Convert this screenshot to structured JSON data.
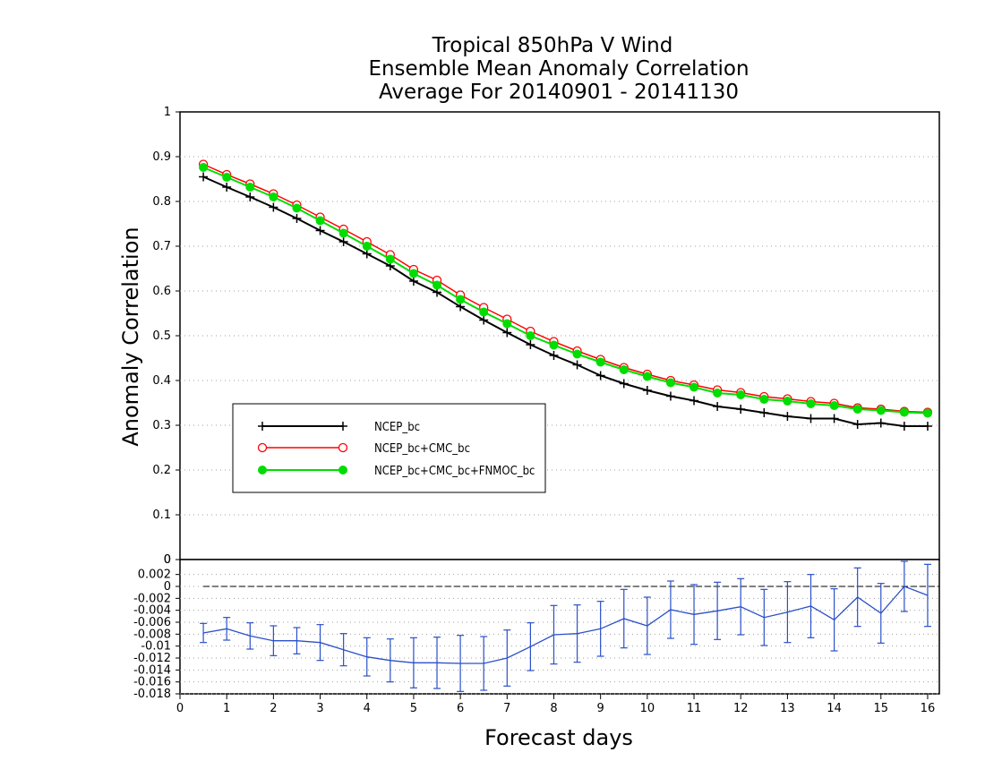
{
  "chart_data": [
    {
      "type": "line",
      "title": "Tropical 850hPa V Wind",
      "subtitle": "Ensemble Mean Anomaly Correlation",
      "subtitle2": "Average For 20140901 - 20141130",
      "xlabel": "Forecast days",
      "ylabel": "Anomaly Correlation",
      "xlim": [
        0,
        16.25
      ],
      "ylim": [
        0,
        1
      ],
      "yticks": [
        "0",
        "0.1",
        "0.2",
        "0.3",
        "0.4",
        "0.5",
        "0.6",
        "0.7",
        "0.8",
        "0.9",
        "1"
      ],
      "x": [
        0.5,
        1,
        1.5,
        2,
        2.5,
        3,
        3.5,
        4,
        4.5,
        5,
        5.5,
        6,
        6.5,
        7,
        7.5,
        8,
        8.5,
        9,
        9.5,
        10,
        10.5,
        11,
        11.5,
        12,
        12.5,
        13,
        13.5,
        14,
        14.5,
        15,
        15.5,
        16
      ],
      "series": [
        {
          "name": "NCEP_bc",
          "color": "#000000",
          "marker": "plus",
          "values": [
            0.855,
            0.832,
            0.81,
            0.787,
            0.762,
            0.735,
            0.71,
            0.683,
            0.656,
            0.622,
            0.597,
            0.565,
            0.535,
            0.507,
            0.48,
            0.456,
            0.435,
            0.411,
            0.393,
            0.378,
            0.365,
            0.355,
            0.342,
            0.336,
            0.328,
            0.32,
            0.315,
            0.315,
            0.302,
            0.305,
            0.298,
            0.298
          ]
        },
        {
          "name": "NCEP_bc+CMC_bc",
          "color": "#ff0000",
          "marker": "open-circle",
          "values": [
            0.883,
            0.86,
            0.839,
            0.817,
            0.792,
            0.765,
            0.738,
            0.71,
            0.681,
            0.648,
            0.624,
            0.591,
            0.563,
            0.537,
            0.51,
            0.487,
            0.466,
            0.447,
            0.429,
            0.414,
            0.4,
            0.39,
            0.379,
            0.373,
            0.364,
            0.359,
            0.353,
            0.349,
            0.339,
            0.336,
            0.331,
            0.329
          ]
        },
        {
          "name": "NCEP_bc+CMC_bc+FNMOC_bc",
          "color": "#00dd00",
          "marker": "filled-circle",
          "values": [
            0.876,
            0.854,
            0.832,
            0.81,
            0.785,
            0.757,
            0.729,
            0.7,
            0.671,
            0.639,
            0.613,
            0.581,
            0.553,
            0.527,
            0.5,
            0.479,
            0.459,
            0.441,
            0.424,
            0.409,
            0.395,
            0.385,
            0.372,
            0.368,
            0.358,
            0.354,
            0.348,
            0.344,
            0.336,
            0.333,
            0.329,
            0.327
          ]
        }
      ],
      "legend": "lower-left"
    },
    {
      "type": "line",
      "xlabel": "Forecast days",
      "xlim": [
        0,
        16.25
      ],
      "ylim": [
        -0.018,
        0.0045
      ],
      "xticks": [
        "0",
        "1",
        "2",
        "3",
        "4",
        "5",
        "6",
        "7",
        "8",
        "9",
        "10",
        "11",
        "12",
        "13",
        "14",
        "15",
        "16"
      ],
      "yticks": [
        "-0.018",
        "-0.016",
        "-0.014",
        "-0.012",
        "-0.01",
        "-0.008",
        "-0.006",
        "-0.004",
        "-0.002",
        "0",
        "0.002"
      ],
      "top_tick": "0",
      "x": [
        0.5,
        1,
        1.5,
        2,
        2.5,
        3,
        3.5,
        4,
        4.5,
        5,
        5.5,
        6,
        6.5,
        7,
        7.5,
        8,
        8.5,
        9,
        9.5,
        10,
        10.5,
        11,
        11.5,
        12,
        12.5,
        13,
        13.5,
        14,
        14.5,
        15,
        15.5,
        16
      ],
      "series": [
        {
          "color": "#2a50c8",
          "marker": "errorbar",
          "values": [
            -0.0078,
            -0.0071,
            -0.0083,
            -0.0091,
            -0.0091,
            -0.0094,
            -0.0106,
            -0.0118,
            -0.0124,
            -0.0128,
            -0.0128,
            -0.0129,
            -0.0129,
            -0.012,
            -0.0101,
            -0.0081,
            -0.0079,
            -0.0071,
            -0.0054,
            -0.0066,
            -0.0039,
            -0.0047,
            -0.0041,
            -0.0034,
            -0.0052,
            -0.0043,
            -0.0033,
            -0.0056,
            -0.0018,
            -0.0045,
            0.0,
            -0.0015
          ],
          "err": [
            0.0016,
            0.0019,
            0.0022,
            0.0025,
            0.0022,
            0.003,
            0.0027,
            0.0032,
            0.0036,
            0.0042,
            0.0043,
            0.0047,
            0.0045,
            0.0047,
            0.004,
            0.0049,
            0.0048,
            0.0046,
            0.0049,
            0.0048,
            0.0048,
            0.005,
            0.0048,
            0.0047,
            0.0047,
            0.0051,
            0.0053,
            0.0052,
            0.0049,
            0.005,
            0.0042,
            0.0052
          ]
        }
      ]
    }
  ],
  "legend_items": [
    {
      "label": "NCEP_bc",
      "color": "#000000",
      "marker": "plus"
    },
    {
      "label": "NCEP_bc+CMC_bc",
      "color": "#ff0000",
      "marker": "open-circle"
    },
    {
      "label": "NCEP_bc+CMC_bc+FNMOC_bc",
      "color": "#00dd00",
      "marker": "filled-circle"
    }
  ]
}
